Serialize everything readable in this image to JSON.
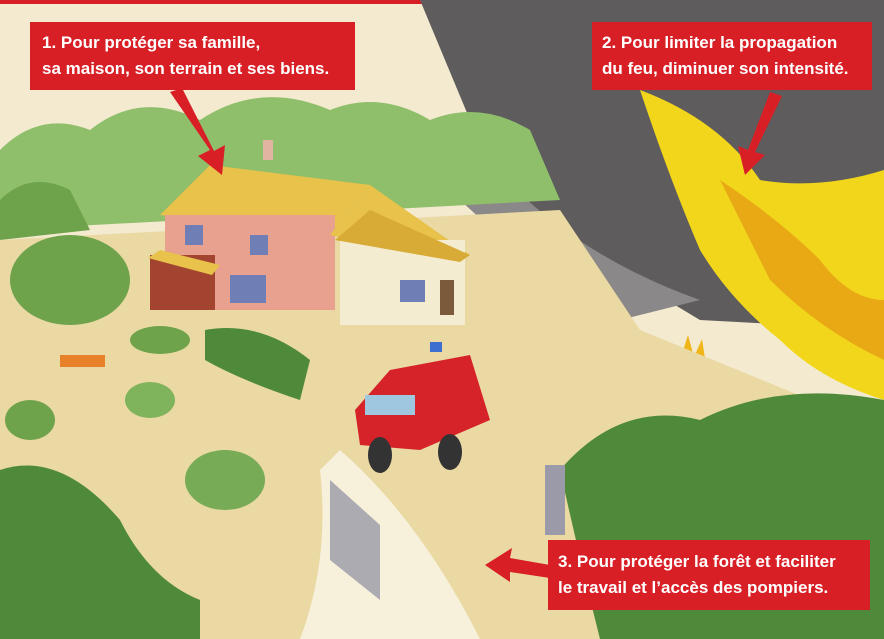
{
  "callouts": [
    {
      "lines": [
        "1. Pour protéger sa famille,",
        "sa maison, son terrain et ses biens."
      ]
    },
    {
      "lines": [
        "2. Pour limiter la propagation",
        "du feu, diminuer son intensité."
      ]
    },
    {
      "lines": [
        "3. Pour protéger la forêt et faciliter",
        "le travail et l’accès des pompiers."
      ]
    }
  ]
}
